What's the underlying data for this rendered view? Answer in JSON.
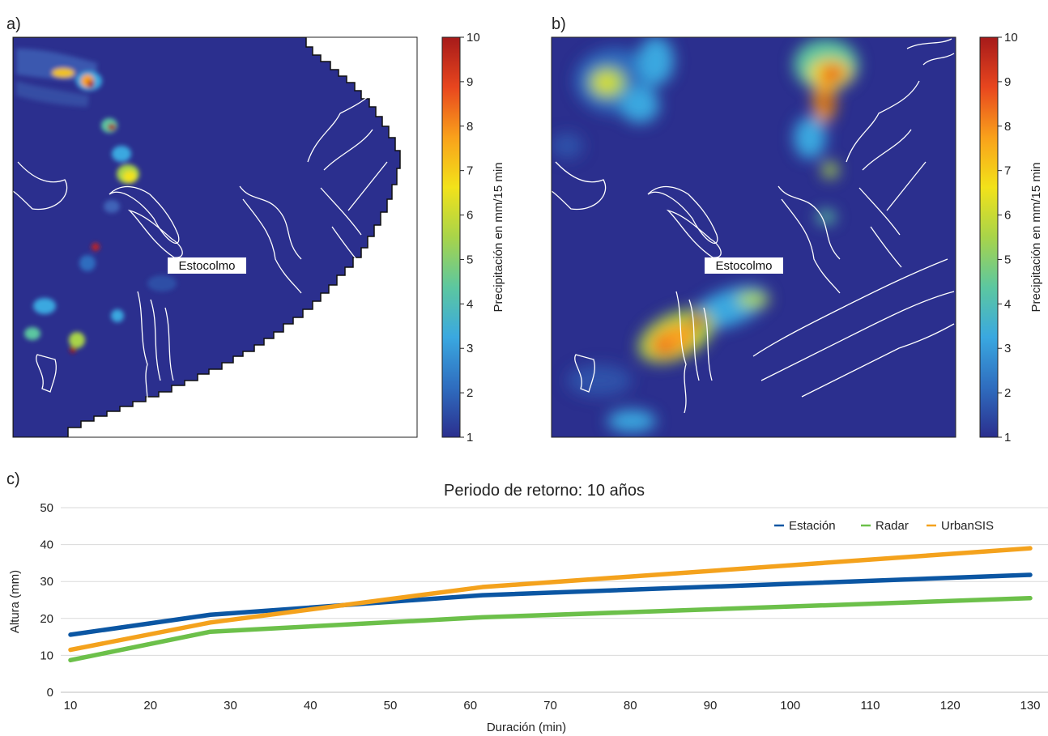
{
  "panels": {
    "a": {
      "letter": "a)",
      "city_label": "Estocolmo"
    },
    "b": {
      "letter": "b)",
      "city_label": "Estocolmo"
    },
    "c": {
      "letter": "c)"
    }
  },
  "colorbar": {
    "label": "Precipitación en mm/15 min",
    "ticks": [
      "10",
      "9",
      "8",
      "7",
      "6",
      "5",
      "4",
      "3",
      "2",
      "1"
    ],
    "min": 1,
    "max": 10,
    "colormap": [
      "#2b2f8e",
      "#2f6dbf",
      "#3aa8e0",
      "#5cc7a0",
      "#a8d44a",
      "#f2e21a",
      "#f9a11b",
      "#e8461e",
      "#a61a1a"
    ]
  },
  "chart_data": {
    "type": "line",
    "title": "Periodo de retorno: 10 años",
    "xlabel": "Duración (min)",
    "ylabel": "Altura (mm)",
    "xlim": [
      10,
      130
    ],
    "ylim": [
      0,
      50
    ],
    "xticks": [
      "10",
      "20",
      "30",
      "40",
      "50",
      "60",
      "70",
      "80",
      "90",
      "100",
      "110",
      "120",
      "130"
    ],
    "yticks": [
      "0",
      "10",
      "20",
      "30",
      "40",
      "50"
    ],
    "legend_position": "top-right",
    "grid": true,
    "x": [
      10,
      27.5,
      61.5,
      130
    ],
    "series": [
      {
        "name": "Estación",
        "color": "#0b56a3",
        "values": [
          15.6,
          21.0,
          26.3,
          31.8
        ]
      },
      {
        "name": "Radar",
        "color": "#6cc04a",
        "values": [
          8.7,
          16.4,
          20.3,
          25.5
        ]
      },
      {
        "name": "UrbanSIS",
        "color": "#f4a21d",
        "values": [
          11.5,
          18.9,
          28.5,
          39.0
        ]
      }
    ]
  }
}
